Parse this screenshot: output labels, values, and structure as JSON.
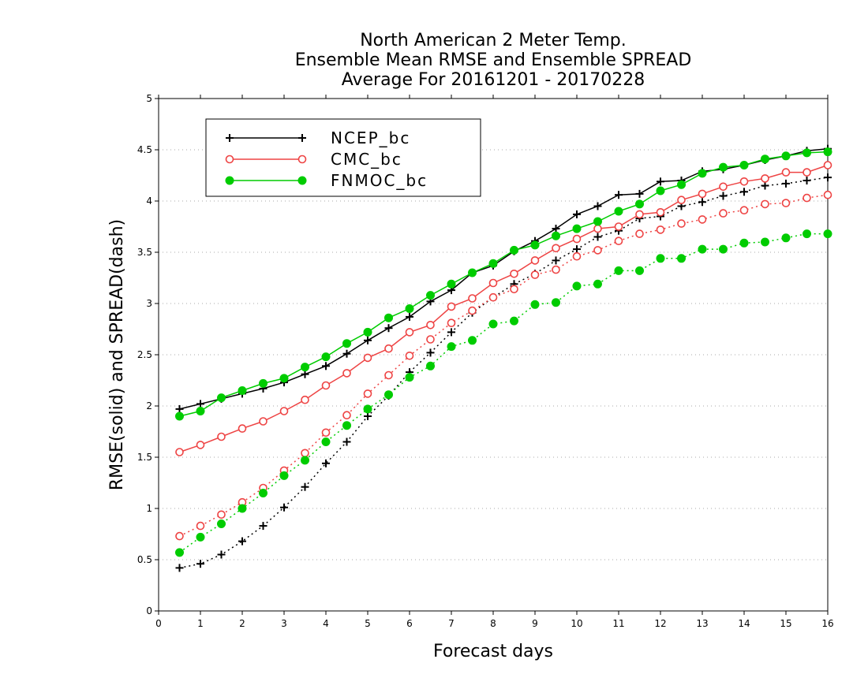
{
  "chart_data": {
    "type": "line",
    "title_lines": [
      "North American 2 Meter Temp.",
      "Ensemble Mean RMSE and Ensemble SPREAD",
      "Average For 20161201 - 20170228"
    ],
    "xlabel": "Forecast days",
    "ylabel": "RMSE(solid) and SPREAD(dash)",
    "xlim": [
      0,
      16
    ],
    "ylim": [
      0,
      5
    ],
    "x_ticks": [
      "0",
      "1",
      "2",
      "3",
      "4",
      "5",
      "6",
      "7",
      "8",
      "9",
      "10",
      "11",
      "12",
      "13",
      "14",
      "15",
      "16"
    ],
    "y_ticks": [
      "0",
      "0.5",
      "1",
      "1.5",
      "2",
      "2.5",
      "3",
      "3.5",
      "4",
      "4.5",
      "5"
    ],
    "grid": "horizontal dotted",
    "legend_position": "top-left",
    "x": [
      0.5,
      1,
      1.5,
      2,
      2.5,
      3,
      3.5,
      4,
      4.5,
      5,
      5.5,
      6,
      6.5,
      7,
      7.5,
      8,
      8.5,
      9,
      9.5,
      10,
      10.5,
      11,
      11.5,
      12,
      12.5,
      13,
      13.5,
      14,
      14.5,
      15,
      15.5,
      16
    ],
    "series": [
      {
        "name": "NCEP_bc",
        "color": "#000000",
        "marker": "plus",
        "rmse": [
          1.97,
          2.02,
          2.07,
          2.12,
          2.17,
          2.23,
          2.31,
          2.39,
          2.51,
          2.64,
          2.76,
          2.87,
          3.02,
          3.13,
          3.3,
          3.37,
          3.51,
          3.61,
          3.73,
          3.87,
          3.95,
          4.06,
          4.07,
          4.19,
          4.2,
          4.29,
          4.31,
          4.35,
          4.4,
          4.44,
          4.49,
          4.51
        ],
        "spread": [
          0.42,
          0.46,
          0.55,
          0.68,
          0.83,
          1.01,
          1.21,
          1.44,
          1.65,
          1.9,
          2.1,
          2.33,
          2.52,
          2.72,
          2.91,
          3.06,
          3.19,
          3.29,
          3.42,
          3.53,
          3.65,
          3.71,
          3.83,
          3.85,
          3.95,
          3.99,
          4.05,
          4.09,
          4.15,
          4.17,
          4.2,
          4.23
        ]
      },
      {
        "name": "CMC_bc",
        "color": "#ee4444",
        "marker": "open-circle",
        "rmse": [
          1.55,
          1.62,
          1.7,
          1.78,
          1.85,
          1.95,
          2.06,
          2.2,
          2.32,
          2.47,
          2.56,
          2.72,
          2.79,
          2.97,
          3.05,
          3.2,
          3.29,
          3.42,
          3.54,
          3.63,
          3.73,
          3.75,
          3.87,
          3.89,
          4.01,
          4.07,
          4.14,
          4.19,
          4.22,
          4.28,
          4.28,
          4.35
        ],
        "spread": [
          0.73,
          0.83,
          0.94,
          1.06,
          1.2,
          1.37,
          1.54,
          1.74,
          1.91,
          2.12,
          2.3,
          2.49,
          2.65,
          2.81,
          2.93,
          3.06,
          3.14,
          3.28,
          3.33,
          3.46,
          3.52,
          3.61,
          3.68,
          3.72,
          3.78,
          3.82,
          3.88,
          3.91,
          3.97,
          3.98,
          4.03,
          4.06
        ]
      },
      {
        "name": "FNMOC_bc",
        "color": "#00cc00",
        "marker": "filled-circle",
        "rmse": [
          1.9,
          1.95,
          2.08,
          2.15,
          2.22,
          2.27,
          2.38,
          2.48,
          2.61,
          2.72,
          2.86,
          2.95,
          3.08,
          3.19,
          3.3,
          3.39,
          3.52,
          3.57,
          3.66,
          3.73,
          3.8,
          3.9,
          3.97,
          4.1,
          4.16,
          4.27,
          4.33,
          4.35,
          4.41,
          4.44,
          4.47,
          4.48
        ],
        "spread": [
          0.57,
          0.72,
          0.85,
          1.0,
          1.15,
          1.32,
          1.47,
          1.65,
          1.81,
          1.97,
          2.11,
          2.28,
          2.39,
          2.58,
          2.64,
          2.8,
          2.83,
          2.99,
          3.01,
          3.17,
          3.19,
          3.32,
          3.32,
          3.44,
          3.44,
          3.53,
          3.53,
          3.59,
          3.6,
          3.64,
          3.68,
          3.68
        ]
      }
    ]
  }
}
